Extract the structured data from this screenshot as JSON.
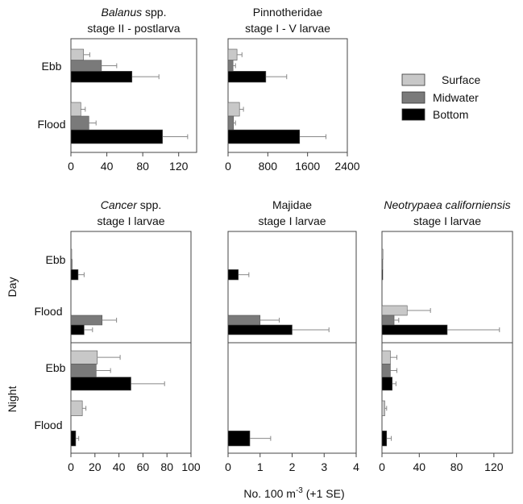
{
  "colors": {
    "surface": "#c8c8c8",
    "midwater": "#7a7a7a",
    "bottom": "#000000",
    "error_bar": "#888888",
    "axis": "#444444"
  },
  "legend": {
    "surface": "Surface",
    "midwater": "Midwater",
    "bottom": "Bottom"
  },
  "xlabel": {
    "prefix": "No. 100 m",
    "exponent": "-3",
    "suffix": " (+1 SE)"
  },
  "row_labels": {
    "day": "Day",
    "night": "Night"
  },
  "chart_data": [
    {
      "type": "bar",
      "orientation": "horizontal",
      "title_italic": "Balanus",
      "title_rest": " spp.",
      "subtitle": "stage II - postlarva",
      "xlim": [
        0,
        140
      ],
      "xticks": [
        0,
        40,
        80,
        120
      ],
      "categories": [
        "Ebb",
        "Flood"
      ],
      "series": [
        {
          "name": "Surface",
          "values": [
            14,
            11
          ],
          "errors": [
            7,
            5
          ]
        },
        {
          "name": "Midwater",
          "values": [
            34,
            20
          ],
          "errors": [
            17,
            8
          ]
        },
        {
          "name": "Bottom",
          "values": [
            68,
            102
          ],
          "errors": [
            30,
            28
          ]
        }
      ]
    },
    {
      "type": "bar",
      "orientation": "horizontal",
      "title": "Pinnotheridae",
      "subtitle": "stage I - V larvae",
      "xlim": [
        0,
        2400
      ],
      "xticks": [
        0,
        800,
        1600,
        2400
      ],
      "categories": [
        "Ebb",
        "Flood"
      ],
      "series": [
        {
          "name": "Surface",
          "values": [
            180,
            230
          ],
          "errors": [
            100,
            80
          ]
        },
        {
          "name": "Midwater",
          "values": [
            100,
            110
          ],
          "errors": [
            50,
            40
          ]
        },
        {
          "name": "Bottom",
          "values": [
            760,
            1440
          ],
          "errors": [
            420,
            530
          ]
        }
      ]
    },
    {
      "type": "bar",
      "orientation": "horizontal",
      "title_italic": "Cancer",
      "title_rest": " spp.",
      "subtitle": "stage I larvae",
      "xlim": [
        0,
        100
      ],
      "xticks": [
        0,
        20,
        40,
        60,
        80,
        100
      ],
      "categories": [
        "Day Ebb",
        "Day Flood",
        "Night Ebb",
        "Night Flood"
      ],
      "series": [
        {
          "name": "Surface",
          "values": [
            0.5,
            0,
            22,
            9.5
          ],
          "errors": [
            0,
            0,
            19,
            3
          ]
        },
        {
          "name": "Midwater",
          "values": [
            1,
            26,
            21,
            0
          ],
          "errors": [
            0,
            12,
            12,
            0
          ]
        },
        {
          "name": "Bottom",
          "values": [
            6,
            11,
            50,
            4
          ],
          "errors": [
            5,
            7,
            28,
            2.5
          ]
        }
      ]
    },
    {
      "type": "bar",
      "orientation": "horizontal",
      "title": "Majidae",
      "subtitle": "stage I larvae",
      "xlim": [
        0,
        4
      ],
      "xticks": [
        0,
        1,
        2,
        3,
        4
      ],
      "categories": [
        "Day Ebb",
        "Day Flood",
        "Night Ebb",
        "Night Flood"
      ],
      "series": [
        {
          "name": "Surface",
          "values": [
            0,
            0,
            0,
            0
          ],
          "errors": [
            0,
            0,
            0,
            0
          ]
        },
        {
          "name": "Midwater",
          "values": [
            0,
            1,
            0,
            0
          ],
          "errors": [
            0,
            0.6,
            0,
            0
          ]
        },
        {
          "name": "Bottom",
          "values": [
            0.32,
            2,
            0,
            0.68
          ],
          "errors": [
            0.33,
            1.15,
            0,
            0.65
          ]
        }
      ]
    },
    {
      "type": "bar",
      "orientation": "horizontal",
      "title_italic": "Neotrypaea californiensis",
      "subtitle": "stage I larvae",
      "xlim": [
        0,
        140
      ],
      "xticks": [
        0,
        40,
        80,
        120
      ],
      "categories": [
        "Day Ebb",
        "Day Flood",
        "Night Ebb",
        "Night Flood"
      ],
      "series": [
        {
          "name": "Surface",
          "values": [
            1,
            27,
            9,
            3
          ],
          "errors": [
            0,
            25,
            7,
            2
          ]
        },
        {
          "name": "Midwater",
          "values": [
            0.5,
            13,
            9,
            0
          ],
          "errors": [
            0,
            5,
            7,
            0
          ]
        },
        {
          "name": "Bottom",
          "values": [
            0.5,
            70,
            11,
            5
          ],
          "errors": [
            0,
            56,
            4,
            5
          ]
        }
      ]
    }
  ]
}
